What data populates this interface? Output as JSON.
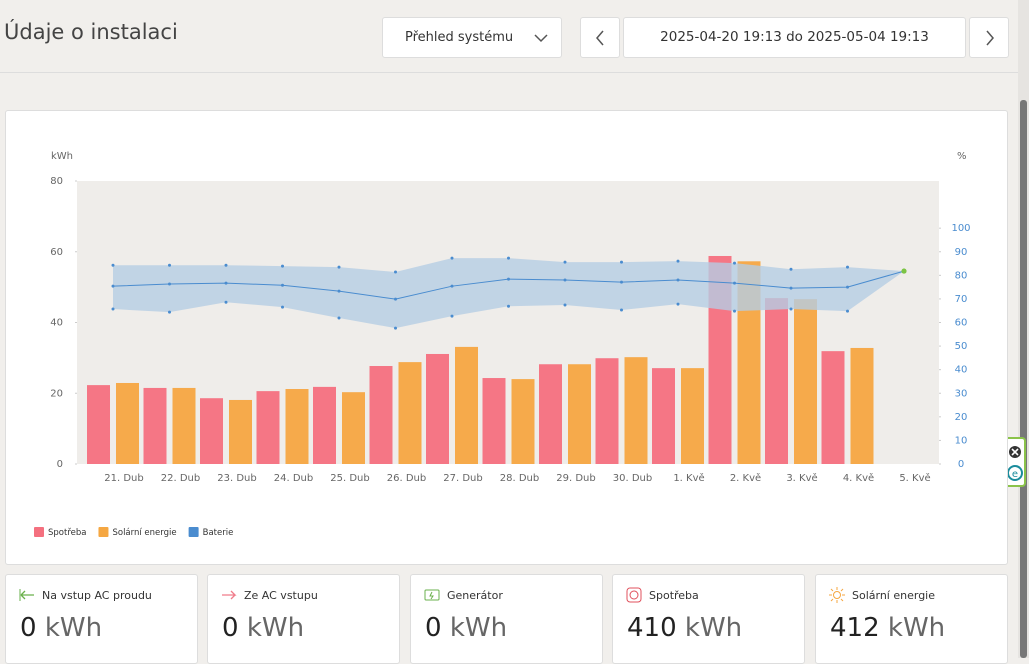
{
  "header": {
    "title": "Údaje o instalaci",
    "view_select": "Přehled systému",
    "date_range": "2025-04-20 19:13 do 2025-05-04 19:13"
  },
  "chart_data": {
    "type": "bar",
    "y_label": "kWh",
    "y2_label": "%",
    "categories": [
      "21. Dub",
      "22. Dub",
      "23. Dub",
      "24. Dub",
      "25. Dub",
      "26. Dub",
      "27. Dub",
      "28. Dub",
      "29. Dub",
      "30. Dub",
      "1. Kvě",
      "2. Kvě",
      "3. Kvě",
      "4. Kvě",
      "5. Kvě"
    ],
    "series": [
      {
        "name": "Spotřeba",
        "color": "#f4707f",
        "values": [
          22.3,
          21.5,
          18.6,
          20.6,
          21.8,
          27.7,
          31.1,
          24.3,
          28.2,
          29.9,
          27.1,
          58.8,
          46.9,
          31.9,
          null
        ]
      },
      {
        "name": "Solární energie",
        "color": "#f5a742",
        "values": [
          22.9,
          21.5,
          18.1,
          21.2,
          20.3,
          28.8,
          33.1,
          24.0,
          28.2,
          30.2,
          27.1,
          57.3,
          46.6,
          32.8,
          null
        ]
      },
      {
        "name": "Baterie",
        "color": "#4a8ccf",
        "axis": "y2",
        "band_color": "#b5cde3",
        "values": [
          75.4,
          76.3,
          76.7,
          75.8,
          73.3,
          69.9,
          75.4,
          78.4,
          78.0,
          77.1,
          78.0,
          76.7,
          74.6,
          75.0,
          81.8
        ],
        "max": [
          84.3,
          84.3,
          84.3,
          83.9,
          83.5,
          81.4,
          87.3,
          87.3,
          85.6,
          85.6,
          86.0,
          85.2,
          82.6,
          83.5,
          81.8
        ],
        "min": [
          65.7,
          64.4,
          68.6,
          66.5,
          61.9,
          57.6,
          62.7,
          66.9,
          67.4,
          65.3,
          67.8,
          64.8,
          65.7,
          64.8,
          81.8
        ]
      }
    ],
    "ylim": [
      0,
      80
    ],
    "yticks": [
      0,
      20,
      40,
      60,
      80
    ],
    "y2lim": [
      0,
      120
    ],
    "y2ticks": [
      0,
      10,
      20,
      30,
      40,
      50,
      60,
      70,
      80,
      90,
      100
    ],
    "legend": "bottom-left"
  },
  "cards": [
    {
      "title": "Na vstup AC proudu",
      "value": "0",
      "unit": "kWh"
    },
    {
      "title": "Ze AC vstupu",
      "value": "0",
      "unit": "kWh"
    },
    {
      "title": "Generátor",
      "value": "0",
      "unit": "kWh"
    },
    {
      "title": "Spotřeba",
      "value": "410",
      "unit": "kWh"
    },
    {
      "title": "Solární energie",
      "value": "412",
      "unit": "kWh"
    }
  ]
}
